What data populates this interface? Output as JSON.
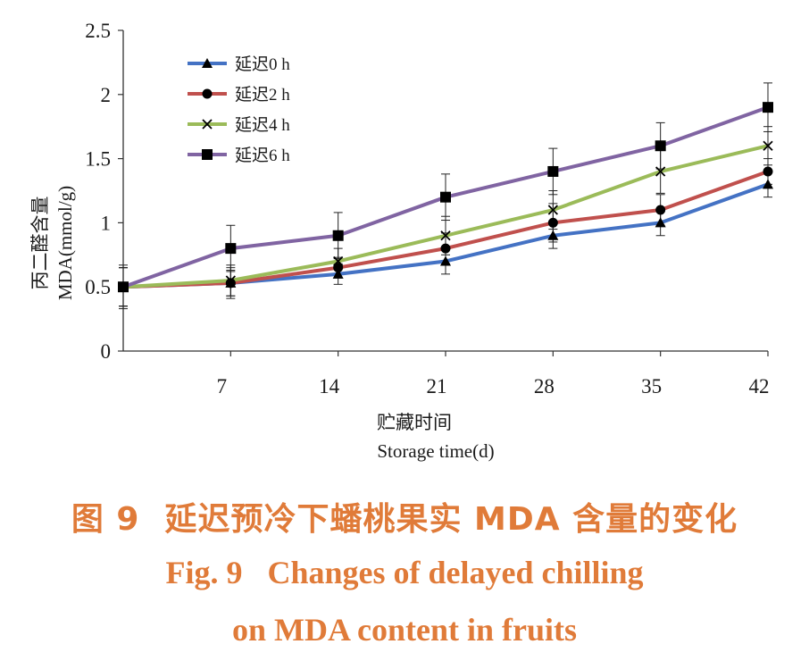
{
  "chart_data": {
    "type": "line",
    "x": [
      0,
      7,
      14,
      21,
      28,
      35,
      42
    ],
    "x_tick_labels": [
      "7",
      "14",
      "21",
      "28",
      "35",
      "42"
    ],
    "xlabel_zh": "贮藏时间",
    "xlabel_en": "Storage time",
    "xlabel_unit": "(d)",
    "ylabel_zh": "丙二醛含量",
    "ylabel_en": "MDA(mmol/g)",
    "ylim": [
      0,
      2.5
    ],
    "y_ticks": [
      0,
      0.5,
      1,
      1.5,
      2,
      2.5
    ],
    "y_tick_labels": [
      "0",
      "0.5",
      "1",
      "1.5",
      "2",
      "2.5"
    ],
    "legend_position": "top-left",
    "grid": false,
    "series": [
      {
        "name": "延迟0 h",
        "color": "#4472c4",
        "marker": "triangle",
        "values": [
          0.5,
          0.53,
          0.6,
          0.7,
          0.9,
          1.0,
          1.3
        ],
        "errors": [
          0.17,
          0.12,
          0.08,
          0.1,
          0.1,
          0.1,
          0.1
        ]
      },
      {
        "name": "延迟2 h",
        "color": "#c0504d",
        "marker": "circle",
        "values": [
          0.5,
          0.53,
          0.65,
          0.8,
          1.0,
          1.1,
          1.4
        ],
        "errors": [
          0.15,
          0.1,
          0.08,
          0.12,
          0.15,
          0.12,
          0.1
        ]
      },
      {
        "name": "延迟4 h",
        "color": "#9bbb59",
        "marker": "x",
        "values": [
          0.5,
          0.55,
          0.7,
          0.9,
          1.1,
          1.4,
          1.6
        ],
        "errors": [
          0.15,
          0.12,
          0.1,
          0.15,
          0.15,
          0.17,
          0.15
        ]
      },
      {
        "name": "延迟6 h",
        "color": "#8064a2",
        "marker": "square",
        "values": [
          0.5,
          0.8,
          0.9,
          1.2,
          1.4,
          1.6,
          1.9
        ],
        "errors": [
          0.15,
          0.18,
          0.18,
          0.18,
          0.18,
          0.18,
          0.19
        ]
      }
    ]
  },
  "caption": {
    "zh_label": "图 9",
    "zh_text": "延迟预冷下蟠桃果实 MDA 含量的变化",
    "en_label": "Fig. 9",
    "en_line1": "Changes of delayed chilling",
    "en_line2": "on MDA content in fruits"
  }
}
